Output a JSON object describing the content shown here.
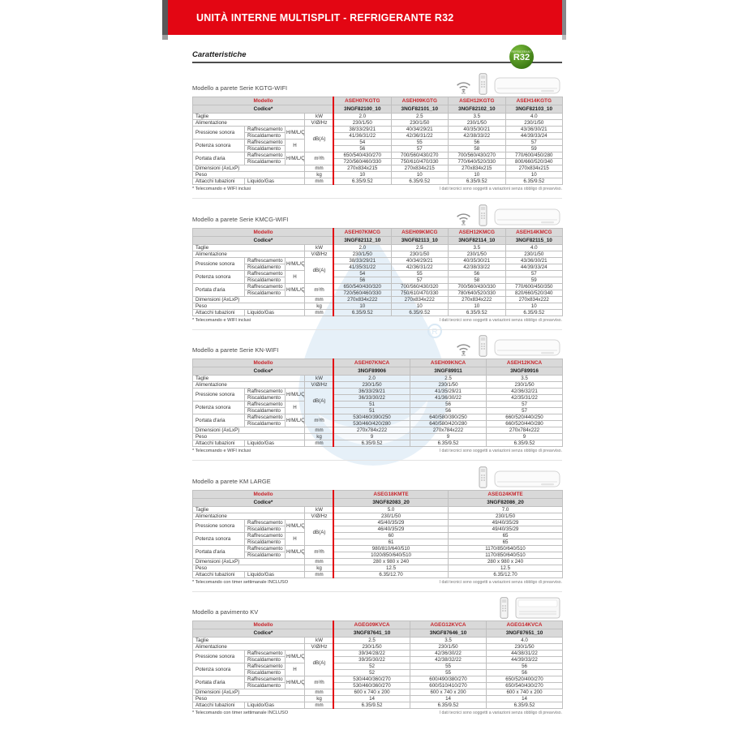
{
  "banner": {
    "title": "UNITÀ INTERNE MULTISPLIT - REFRIGERANTE R32"
  },
  "page": {
    "heading": "Caratteristiche"
  },
  "badge": {
    "top_label": "REFRIGERANT",
    "label": "R32",
    "color": "#4f9e21"
  },
  "colors": {
    "accent_red": "#e30613",
    "header_gray": "#d9d9d9",
    "watermark_blue": "#c4dcf0"
  },
  "table_header": {
    "model_label": "Modello",
    "code_label": "Codice*"
  },
  "table_rows": [
    {
      "id": "taglie",
      "label": "Taglie",
      "label_cs": 3,
      "unit": "kW"
    },
    {
      "id": "alimentazione",
      "label": "Alimentazione",
      "label_cs": 3,
      "unit": "V/Ø/Hz"
    },
    {
      "id": "ps_raff",
      "label": "Pressione sonora",
      "label_rs": 2,
      "sub": "Raffrescamento",
      "sub2": "H/M/L/Q",
      "sub2_rs": 2,
      "unit": "dB(A)",
      "unit_rs": 4
    },
    {
      "id": "ps_risc",
      "sub": "Riscaldamento"
    },
    {
      "id": "pot_raff",
      "label": "Potenza sonora",
      "label_rs": 2,
      "sub": "Raffrescamento",
      "sub2": "H",
      "sub2_rs": 2
    },
    {
      "id": "pot_risc",
      "sub": "Riscaldamento"
    },
    {
      "id": "port_raff",
      "label": "Portata d'aria",
      "label_rs": 2,
      "sub": "Raffrescamento",
      "sub2": "H/M/L/Q",
      "sub2_rs": 2,
      "unit": "m³/h",
      "unit_rs": 2
    },
    {
      "id": "port_risc",
      "sub": "Riscaldamento"
    },
    {
      "id": "dim",
      "label": "Dimensioni (AxLxP)",
      "label_cs": 3,
      "unit": "mm"
    },
    {
      "id": "peso",
      "label": "Peso",
      "label_cs": 3,
      "unit": "kg"
    },
    {
      "id": "attacchi",
      "label": "Attacchi tubazioni",
      "sub": "Liquido/Gas",
      "sub_cs": 2,
      "unit": "mm"
    }
  ],
  "sections": [
    {
      "title": "Modello a parete Serie KGTG-WIFI",
      "icons": [
        "wifi",
        "remote",
        "wall-unit"
      ],
      "models": [
        "ASEH07KGTG",
        "ASEH09KGTG",
        "ASEH12KGTG",
        "ASEH14KGTG"
      ],
      "codes": [
        "3NGF82100_10",
        "3NGF82101_10",
        "3NGF82102_10",
        "3NGF82103_10"
      ],
      "values": {
        "taglie": [
          "2.0",
          "2.5",
          "3.5",
          "4.0"
        ],
        "alimentazione": [
          "230/1/50",
          "230/1/50",
          "230/1/50",
          "230/1/50"
        ],
        "ps_raff": [
          "38/33/29/21",
          "40/34/29/21",
          "40/35/30/21",
          "43/36/30/21"
        ],
        "ps_risc": [
          "41/36/31/22",
          "42/36/31/22",
          "42/38/33/22",
          "44/39/33/24"
        ],
        "pot_raff": [
          "54",
          "55",
          "56",
          "57"
        ],
        "pot_risc": [
          "56",
          "57",
          "58",
          "59"
        ],
        "port_raff": [
          "650/540/430/270",
          "700/560/430/270",
          "700/560/430/270",
          "770/600/450/280"
        ],
        "port_risc": [
          "720/560/460/330",
          "750/610/470/330",
          "770/640/520/330",
          "800/660/520/340"
        ],
        "dim": [
          "270x834x215",
          "270x834x215",
          "270x834x215",
          "270x834x215"
        ],
        "peso": [
          "10",
          "10",
          "10",
          "10"
        ],
        "attacchi": [
          "6.35/9.52",
          "6.35/9.52",
          "6.35/9.52",
          "6.35/9.52"
        ]
      },
      "footnote_left": "* Telecomando e WIFI inclusi",
      "footnote_right": "I dati tecnici sono soggetti a variazioni senza obbligo di preavviso."
    },
    {
      "title": "Modello a parete Serie KMCG-WIFI",
      "icons": [
        "wifi",
        "remote",
        "wall-unit"
      ],
      "models": [
        "ASEH07KMCG",
        "ASEH09KMCG",
        "ASEH12KMCG",
        "ASEH14KMCG"
      ],
      "codes": [
        "3NGF82112_10",
        "3NGF82113_10",
        "3NGF82114_10",
        "3NGF82115_10"
      ],
      "values": {
        "taglie": [
          "2.0",
          "2.5",
          "3.5",
          "4.0"
        ],
        "alimentazione": [
          "230/1/50",
          "230/1/50",
          "230/1/50",
          "230/1/50"
        ],
        "ps_raff": [
          "38/33/29/21",
          "40/34/29/21",
          "40/35/30/21",
          "43/36/30/21"
        ],
        "ps_risc": [
          "41/35/31/22",
          "42/36/31/22",
          "42/38/33/22",
          "44/39/33/24"
        ],
        "pot_raff": [
          "54",
          "55",
          "56",
          "57"
        ],
        "pot_risc": [
          "56",
          "57",
          "58",
          "59"
        ],
        "port_raff": [
          "650/540/430/320",
          "700/560/430/320",
          "700/560/430/330",
          "770/600/450/350"
        ],
        "port_risc": [
          "720/560/460/330",
          "750/610/470/330",
          "780/640/520/330",
          "820/660/520/340"
        ],
        "dim": [
          "270x834x222",
          "270x834x222",
          "270x834x222",
          "270x834x222"
        ],
        "peso": [
          "10",
          "10",
          "10",
          "10"
        ],
        "attacchi": [
          "6.35/9.52",
          "6.35/9.52",
          "6.35/9.52",
          "6.35/9.52"
        ]
      },
      "footnote_left": "* Telecomando e WIFI inclusi",
      "footnote_right": "I dati tecnici sono soggetti a variazioni senza obbligo di preavviso."
    },
    {
      "title": "Modello a parete Serie KN-WIFI",
      "icons": [
        "wifi",
        "remote",
        "wall-unit"
      ],
      "models": [
        "ASEH07KNCA",
        "ASEH09KNCA",
        "ASEH12KNCA"
      ],
      "codes": [
        "3NGF89906",
        "3NGF89911",
        "3NGF89916"
      ],
      "values": {
        "taglie": [
          "2.0",
          "2.5",
          "3.5"
        ],
        "alimentazione": [
          "230/1/50",
          "230/1/50",
          "230/1/50"
        ],
        "ps_raff": [
          "36/33/29/21",
          "41/35/29/21",
          "42/36/32/21"
        ],
        "ps_risc": [
          "36/33/30/22",
          "41/36/30/22",
          "42/35/31/22"
        ],
        "pot_raff": [
          "51",
          "56",
          "57"
        ],
        "pot_risc": [
          "51",
          "56",
          "57"
        ],
        "port_raff": [
          "530/460/390/250",
          "640/580/390/250",
          "660/520/440/250"
        ],
        "port_risc": [
          "530/460/420/280",
          "640/580/420/280",
          "660/520/440/280"
        ],
        "dim": [
          "270x784x222",
          "270x784x222",
          "270x784x222"
        ],
        "peso": [
          "9",
          "9",
          "9"
        ],
        "attacchi": [
          "6.35/9.52",
          "6.35/9.52",
          "6.35/9.52"
        ]
      },
      "footnote_left": "* Telecomando e WIFI inclusi",
      "footnote_right": "I dati tecnici sono soggetti a variazioni senza obbligo di preavviso."
    },
    {
      "title": "Modello a parete KM LARGE",
      "icons": [
        "remote",
        "wall-unit"
      ],
      "models": [
        "ASEG18KMTE",
        "ASEG24KMTE"
      ],
      "codes": [
        "3NGF82083_20",
        "3NGF82086_20"
      ],
      "values": {
        "taglie": [
          "5.0",
          "7.0"
        ],
        "alimentazione": [
          "230/1/50",
          "230/1/50"
        ],
        "ps_raff": [
          "45/40/35/29",
          "49/40/35/29"
        ],
        "ps_risc": [
          "46/40/35/29",
          "49/40/35/29"
        ],
        "pot_raff": [
          "60",
          "65"
        ],
        "pot_risc": [
          "61",
          "65"
        ],
        "port_raff": [
          "980/810/640/510",
          "1170/850/640/510"
        ],
        "port_risc": [
          "1020/850/640/510",
          "1170/850/640/510"
        ],
        "dim": [
          "280 x 980 x 240",
          "280 x 980 x 240"
        ],
        "peso": [
          "12.5",
          "12.5"
        ],
        "attacchi": [
          "6.35/12.70",
          "6.35/12.70"
        ]
      },
      "footnote_left": "* Telecomando con timer settimanale INCLUSO",
      "footnote_right": "I dati tecnici sono soggetti a variazioni senza obbligo di preavviso."
    },
    {
      "title": "Modello a pavimento KV",
      "icons": [
        "remote",
        "floor-unit"
      ],
      "models": [
        "AGEG09KVCA",
        "AGEG12KVCA",
        "AGEG14KVCA"
      ],
      "codes": [
        "3NGF87641_10",
        "3NGF87646_10",
        "3NGF87651_10"
      ],
      "values": {
        "taglie": [
          "2.5",
          "3.5",
          "4.0"
        ],
        "alimentazione": [
          "230/1/50",
          "230/1/50",
          "230/1/50"
        ],
        "ps_raff": [
          "39/34/28/22",
          "42/36/30/22",
          "44/38/31/22"
        ],
        "ps_risc": [
          "39/35/30/22",
          "42/38/32/22",
          "44/39/33/22"
        ],
        "pot_raff": [
          "52",
          "55",
          "56"
        ],
        "pot_risc": [
          "52",
          "55",
          "56"
        ],
        "port_raff": [
          "530/440/360/270",
          "600/490/380/270",
          "650/520/400/270"
        ],
        "port_risc": [
          "530/460/360/270",
          "600/510/410/270",
          "650/540/430/270"
        ],
        "dim": [
          "600 x 740 x 200",
          "600 x 740 x 200",
          "600 x 740 x 200"
        ],
        "peso": [
          "14",
          "14",
          "14"
        ],
        "attacchi": [
          "6.35/9.52",
          "6.35/9.52",
          "6.35/9.52"
        ]
      },
      "footnote_left": "* Telecomando con timer settimanale INCLUSO",
      "footnote_right": "I dati tecnici sono soggetti a variazioni senza obbligo di preavviso."
    }
  ]
}
